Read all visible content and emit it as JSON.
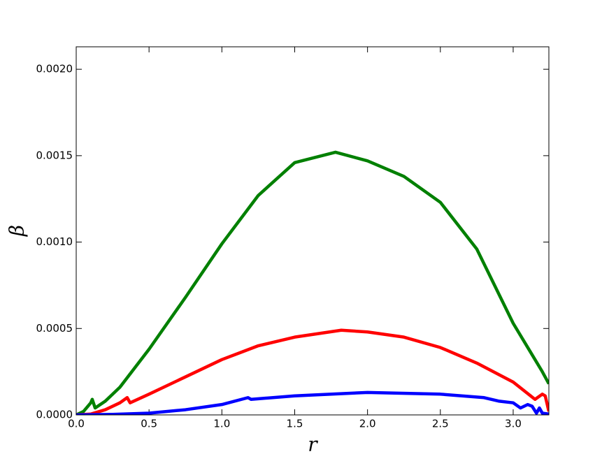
{
  "chart_data": {
    "type": "line",
    "xlabel": "r",
    "ylabel": "β",
    "xlim": [
      0,
      3.245
    ],
    "ylim": [
      0,
      0.00213
    ],
    "xticks": [
      {
        "value": 0,
        "label": "0.0"
      },
      0.5,
      {
        "value": 1,
        "label": "1.0"
      },
      1.5,
      {
        "value": 2,
        "label": "2.0"
      },
      2.5,
      {
        "value": 3,
        "label": "3.0"
      }
    ],
    "yticks": [
      {
        "value": 0,
        "label": "0.0000"
      },
      {
        "value": 0.0005,
        "label": "0.0005"
      },
      {
        "value": 0.001,
        "label": "0.0010"
      },
      {
        "value": 0.0015,
        "label": "0.0015"
      },
      {
        "value": 0.002,
        "label": "0.0020"
      }
    ],
    "series": [
      {
        "color": "#008000",
        "x": [
          0,
          0.05,
          0.1,
          0.11,
          0.13,
          0.2,
          0.3,
          0.5,
          0.75,
          1.0,
          1.25,
          1.5,
          1.78,
          2.0,
          2.25,
          2.5,
          2.75,
          3.0,
          3.2,
          3.245
        ],
        "values": [
          0,
          2e-05,
          7e-05,
          9e-05,
          4e-05,
          8e-05,
          0.00016,
          0.00038,
          0.00068,
          0.00099,
          0.00127,
          0.00146,
          0.00152,
          0.00147,
          0.00138,
          0.00123,
          0.00096,
          0.00053,
          0.00025,
          0.00018
        ]
      },
      {
        "color": "#ff0000",
        "x": [
          0,
          0.1,
          0.2,
          0.3,
          0.35,
          0.37,
          0.5,
          0.75,
          1.0,
          1.25,
          1.5,
          1.82,
          2.0,
          2.25,
          2.5,
          2.75,
          3.0,
          3.15,
          3.2,
          3.22,
          3.245
        ],
        "values": [
          0,
          5e-06,
          3e-05,
          7e-05,
          0.0001,
          7e-05,
          0.00012,
          0.00022,
          0.00032,
          0.0004,
          0.00045,
          0.00049,
          0.00048,
          0.00045,
          0.00039,
          0.0003,
          0.00019,
          9e-05,
          0.00012,
          0.00011,
          2e-05
        ]
      },
      {
        "color": "#0000ff",
        "x": [
          0,
          0.25,
          0.5,
          0.75,
          1.0,
          1.18,
          1.2,
          1.5,
          2.0,
          2.5,
          2.8,
          2.9,
          3.0,
          3.05,
          3.1,
          3.13,
          3.16,
          3.18,
          3.2,
          3.245
        ],
        "values": [
          0,
          3e-06,
          1e-05,
          3e-05,
          6e-05,
          0.0001,
          9e-05,
          0.00011,
          0.00013,
          0.00012,
          0.0001,
          8e-05,
          7e-05,
          4e-05,
          6e-05,
          5e-05,
          1e-05,
          4e-05,
          1e-05,
          5e-06
        ]
      }
    ]
  }
}
